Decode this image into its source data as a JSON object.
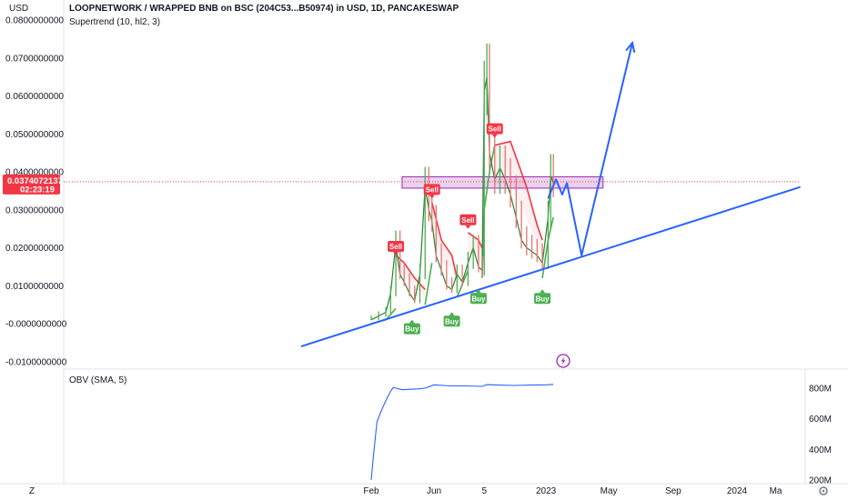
{
  "chart_title": "LOOPNETWORK / WRAPPED BNB on BSC (204C53...B50974) in USD, 1D, PANCAKESWAP",
  "indicator_label": "Supertrend (10, hl2, 3)",
  "currency_label": "USD",
  "current_price": {
    "value": "0.0374072137",
    "countdown": "02:23:19",
    "color": "#f23645"
  },
  "lower_pane_label": "OBV (SMA, 5)",
  "tradingview_logo": "Z",
  "colors": {
    "up": "#089981",
    "down": "#f23645",
    "supertrend_up": "#4caf50",
    "supertrend_down": "#f23645",
    "trendline": "#2962ff",
    "zone_fill": "#e1bee7",
    "zone_border": "#9c27b0",
    "obv_line": "#2962ff",
    "price_line": "#f23645"
  },
  "chart_data": [
    {
      "type": "line",
      "title": "LOOPNETWORK / WRAPPED BNB on BSC (204C53...B50974) in USD, 1D, PANCAKESWAP",
      "ylabel": "USD",
      "ylim": [
        -0.012,
        0.082
      ],
      "x_tick_labels": [
        "Feb",
        "Jun",
        "5",
        "2023",
        "May",
        "Sep",
        "2024",
        "Ma"
      ],
      "y_tick_labels": [
        "0.0800000000",
        "0.0700000000",
        "0.0600000000",
        "0.0500000000",
        "0.0400000000",
        "0.0300000000",
        "0.0200000000",
        "0.0100000000",
        "-0.0000000000",
        "-0.0100000000"
      ],
      "y_ticks": [
        0.08,
        0.07,
        0.06,
        0.05,
        0.04,
        0.03,
        0.02,
        0.01,
        0.0,
        -0.01
      ],
      "grid": false,
      "series": [
        {
          "kind": "price",
          "x": [
            "2022-02-01",
            "2022-02-15",
            "2022-03-01",
            "2022-03-10",
            "2022-03-20",
            "2022-03-28",
            "2022-04-05",
            "2022-04-15",
            "2022-04-25",
            "2022-05-05",
            "2022-05-15",
            "2022-05-22",
            "2022-05-28",
            "2022-06-05",
            "2022-06-15",
            "2022-06-25",
            "2022-07-05",
            "2022-07-15",
            "2022-07-25",
            "2022-08-05",
            "2022-08-15",
            "2022-08-25",
            "2022-09-01",
            "2022-09-05",
            "2022-09-10",
            "2022-09-15",
            "2022-09-25",
            "2022-10-05",
            "2022-10-15",
            "2022-10-25",
            "2022-11-05",
            "2022-11-15",
            "2022-11-25",
            "2022-12-05",
            "2022-12-15",
            "2022-12-25",
            "2023-01-05",
            "2023-01-10",
            "2023-01-15"
          ],
          "values": [
            0.001,
            0.002,
            0.003,
            0.008,
            0.021,
            0.013,
            0.011,
            0.008,
            0.006,
            0.013,
            0.036,
            0.03,
            0.027,
            0.018,
            0.014,
            0.01,
            0.009,
            0.013,
            0.011,
            0.016,
            0.02,
            0.015,
            0.014,
            0.061,
            0.065,
            0.045,
            0.038,
            0.041,
            0.038,
            0.034,
            0.028,
            0.022,
            0.02,
            0.019,
            0.018,
            0.016,
            0.028,
            0.039,
            0.037
          ]
        },
        {
          "name": "Supertrend",
          "kind": "supertrend",
          "segments": [
            {
              "trend": "up",
              "x": [
                "2022-02-01",
                "2022-03-01",
                "2022-03-20"
              ],
              "values": [
                0.0,
                0.001,
                0.004
              ]
            },
            {
              "trend": "down",
              "x": [
                "2022-03-20",
                "2022-04-05",
                "2022-04-25",
                "2022-05-15"
              ],
              "values": [
                0.018,
                0.016,
                0.012,
                0.009
              ]
            },
            {
              "trend": "up",
              "x": [
                "2022-05-15",
                "2022-05-28"
              ],
              "values": [
                0.005,
                0.016
              ]
            },
            {
              "trend": "down",
              "x": [
                "2022-05-28",
                "2022-06-15",
                "2022-07-05",
                "2022-07-15"
              ],
              "values": [
                0.032,
                0.022,
                0.018,
                0.012
              ]
            },
            {
              "trend": "up",
              "x": [
                "2022-07-15",
                "2022-08-05"
              ],
              "values": [
                0.007,
                0.014
              ]
            },
            {
              "trend": "down",
              "x": [
                "2022-08-05",
                "2022-08-25",
                "2022-09-01"
              ],
              "values": [
                0.024,
                0.022,
                0.02
              ]
            },
            {
              "trend": "up",
              "x": [
                "2022-09-01",
                "2022-09-05",
                "2022-09-15",
                "2022-09-25"
              ],
              "values": [
                0.012,
                0.03,
                0.04,
                0.047
              ]
            },
            {
              "trend": "down",
              "x": [
                "2022-09-25",
                "2022-10-25",
                "2022-11-25",
                "2022-12-15",
                "2022-12-25"
              ],
              "values": [
                0.047,
                0.048,
                0.036,
                0.026,
                0.022
              ]
            },
            {
              "trend": "up",
              "x": [
                "2022-12-25",
                "2023-01-05",
                "2023-01-15"
              ],
              "values": [
                0.012,
                0.022,
                0.028
              ]
            }
          ]
        },
        {
          "name": "Trendline",
          "kind": "trendline",
          "x": [
            "2021-09-20",
            "2024-05-01"
          ],
          "values": [
            -0.006,
            0.036
          ]
        },
        {
          "name": "Projection",
          "kind": "projection",
          "x": [
            "2023-01-05",
            "2023-01-20",
            "2023-02-01",
            "2023-02-10",
            "2023-03-10",
            "2023-06-15"
          ],
          "values": [
            0.033,
            0.038,
            0.034,
            0.037,
            0.018,
            0.074
          ]
        }
      ],
      "zone": {
        "x_start": "2022-04-01",
        "x_end": "2023-04-20",
        "y_low": 0.0357,
        "y_high": 0.0387
      },
      "signals": [
        {
          "label": "Sell",
          "x": "2022-03-20",
          "y": 0.017
        },
        {
          "label": "Buy",
          "x": "2022-04-20",
          "y": 0.002
        },
        {
          "label": "Sell",
          "x": "2022-05-28",
          "y": 0.032
        },
        {
          "label": "Buy",
          "x": "2022-07-05",
          "y": 0.004
        },
        {
          "label": "Sell",
          "x": "2022-08-05",
          "y": 0.024
        },
        {
          "label": "Buy",
          "x": "2022-08-25",
          "y": 0.01
        },
        {
          "label": "Sell",
          "x": "2022-09-25",
          "y": 0.048
        },
        {
          "label": "Buy",
          "x": "2022-12-25",
          "y": 0.01
        }
      ]
    },
    {
      "type": "line",
      "title": "OBV (SMA, 5)",
      "ylim": [
        180000000,
        880000000
      ],
      "y_tick_labels": [
        "800M",
        "600M",
        "400M",
        "200M"
      ],
      "y_ticks": [
        800000000,
        600000000,
        400000000,
        200000000
      ],
      "series": [
        {
          "kind": "obv",
          "x": [
            "2022-02-01",
            "2022-02-05",
            "2022-02-12",
            "2022-02-20",
            "2022-03-01",
            "2022-03-10",
            "2022-03-15",
            "2022-04-01",
            "2022-05-01",
            "2022-05-15",
            "2022-06-01",
            "2022-07-01",
            "2022-08-01",
            "2022-09-01",
            "2022-09-10",
            "2022-10-01",
            "2022-11-01",
            "2022-12-01",
            "2023-01-01",
            "2023-01-15"
          ],
          "values": [
            200000000,
            350000000,
            580000000,
            650000000,
            720000000,
            780000000,
            805000000,
            790000000,
            795000000,
            800000000,
            822000000,
            815000000,
            815000000,
            812000000,
            823000000,
            820000000,
            818000000,
            820000000,
            822000000,
            825000000
          ]
        }
      ]
    }
  ]
}
